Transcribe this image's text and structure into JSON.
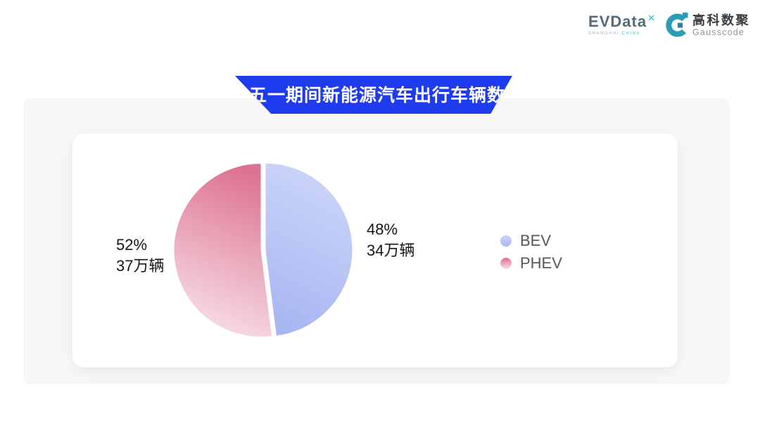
{
  "header": {
    "evdata": {
      "name": "EVData",
      "mark": "✕",
      "tagline_left": "SHANGHAI",
      "tagline_right": "CHINA"
    },
    "gausscode": {
      "cn": "高科数聚",
      "en": "Gausscode"
    }
  },
  "chart_data": {
    "type": "pie",
    "title": "五一期间新能源汽车出行车辆数",
    "unit": "万辆",
    "start_angle_deg": 0,
    "direction": "clockwise",
    "legend_position": "right",
    "slices": [
      {
        "name": "BEV",
        "percent": 48,
        "value": 34,
        "percent_label": "48%",
        "value_label": "34万辆",
        "gradient": [
          "#ccd6f9",
          "#a8b6f2"
        ]
      },
      {
        "name": "PHEV",
        "percent": 52,
        "value": 37,
        "percent_label": "52%",
        "value_label": "37万辆",
        "gradient": [
          "#dd7190",
          "#f7e0e7"
        ]
      }
    ]
  },
  "colors": {
    "banner_blue": "#1f3bee",
    "panel_gray": "#f7f7f9",
    "card_white": "#ffffff",
    "label_text": "#161616",
    "legend_text": "#54575c",
    "logo_teal": "#2b9db8",
    "evdata_slate": "#566b7a"
  }
}
